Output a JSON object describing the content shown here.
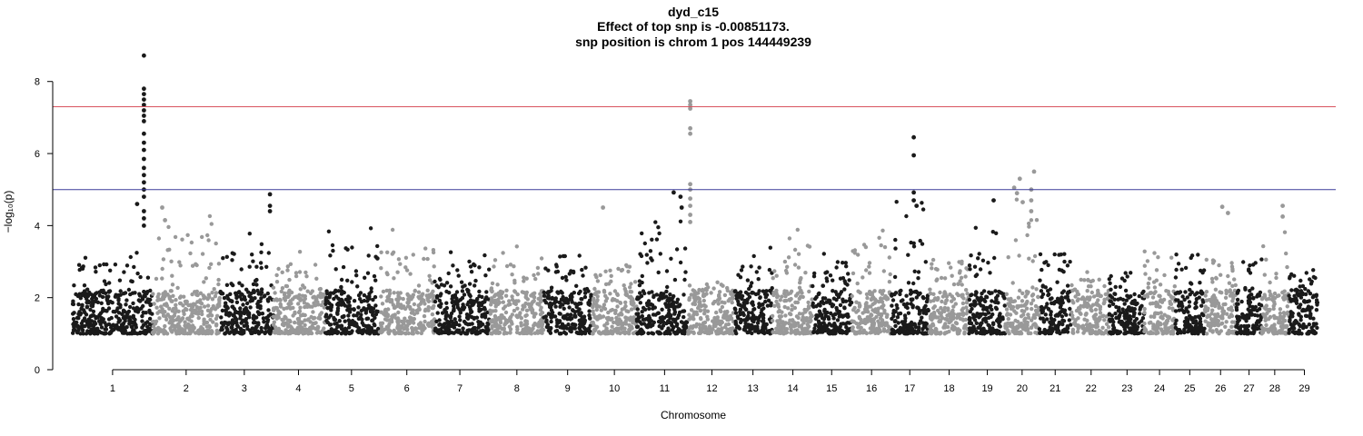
{
  "chart_data": {
    "type": "scatter",
    "title_lines": [
      "dyd_c15",
      "Effect of top snp is -0.00851173.",
      "snp position is chrom 1 pos 144449239"
    ],
    "xlabel": "Chromosome",
    "ylabel": "−log₁₀(p)",
    "ylim": [
      0,
      8.8
    ],
    "yticks": [
      0,
      2,
      4,
      6,
      8
    ],
    "categories": [
      "1",
      "2",
      "3",
      "4",
      "5",
      "6",
      "7",
      "8",
      "9",
      "10",
      "11",
      "12",
      "13",
      "14",
      "15",
      "16",
      "17",
      "18",
      "19",
      "20",
      "21",
      "22",
      "23",
      "24",
      "25",
      "26",
      "27",
      "28",
      "29"
    ],
    "category_positions": [
      0,
      1.29,
      2.31,
      3.26,
      4.19,
      5.16,
      6.09,
      7.09,
      7.98,
      8.8,
      9.68,
      10.51,
      11.23,
      11.93,
      12.61,
      13.31,
      13.98,
      14.67,
      15.34,
      15.95,
      16.53,
      17.16,
      17.79,
      18.36,
      18.89,
      19.43,
      19.93,
      20.38,
      20.9
    ],
    "chromosome_ranges": [
      [
        -0.7,
        0.7
      ],
      [
        0.7,
        1.88
      ],
      [
        1.88,
        2.82
      ],
      [
        2.82,
        3.73
      ],
      [
        3.73,
        4.67
      ],
      [
        4.67,
        5.65
      ],
      [
        5.65,
        6.61
      ],
      [
        6.61,
        7.56
      ],
      [
        7.56,
        8.4
      ],
      [
        8.4,
        9.19
      ],
      [
        9.19,
        10.08
      ],
      [
        10.08,
        10.9
      ],
      [
        10.9,
        11.57
      ],
      [
        11.57,
        12.27
      ],
      [
        12.27,
        12.96
      ],
      [
        12.96,
        13.66
      ],
      [
        13.66,
        14.31
      ],
      [
        14.31,
        15.02
      ],
      [
        15.02,
        15.65
      ],
      [
        15.65,
        16.25
      ],
      [
        16.25,
        16.81
      ],
      [
        16.81,
        17.47
      ],
      [
        17.47,
        18.09
      ],
      [
        18.09,
        18.63
      ],
      [
        18.63,
        19.15
      ],
      [
        19.15,
        19.7
      ],
      [
        19.7,
        20.15
      ],
      [
        20.15,
        20.63
      ],
      [
        20.63,
        21.14
      ]
    ],
    "xlim": [
      -1.05,
      21.45
    ],
    "series_colors": [
      "#1a1a1a",
      "#999999"
    ],
    "base_range": [
      1.0,
      2.2
    ],
    "thresholds": [
      {
        "value": 7.3,
        "color": "#d9535f"
      },
      {
        "value": 5.0,
        "color": "#3b3b9a"
      }
    ],
    "chromosome_peaks": [
      3.3,
      4.5,
      3.8,
      3.4,
      4.0,
      4.0,
      3.3,
      3.5,
      3.3,
      3.3,
      4.9,
      2.6,
      3.8,
      4.0,
      3.4,
      4.1,
      4.9,
      3.5,
      4.7,
      5.5,
      3.8,
      2.9,
      3.0,
      3.6,
      3.7,
      3.5,
      3.5,
      4.5,
      3.2
    ],
    "highlight_points": [
      {
        "x": 0.55,
        "y": 8.72
      },
      {
        "x": 0.55,
        "y": 7.8
      },
      {
        "x": 0.55,
        "y": 7.65
      },
      {
        "x": 0.55,
        "y": 7.5
      },
      {
        "x": 0.55,
        "y": 7.35
      },
      {
        "x": 0.55,
        "y": 7.2
      },
      {
        "x": 0.55,
        "y": 7.05
      },
      {
        "x": 0.55,
        "y": 6.9
      },
      {
        "x": 0.55,
        "y": 6.55
      },
      {
        "x": 0.55,
        "y": 6.3
      },
      {
        "x": 0.55,
        "y": 6.1
      },
      {
        "x": 0.55,
        "y": 5.85
      },
      {
        "x": 0.55,
        "y": 5.6
      },
      {
        "x": 0.55,
        "y": 5.4
      },
      {
        "x": 0.55,
        "y": 5.2
      },
      {
        "x": 0.55,
        "y": 5.0
      },
      {
        "x": 0.55,
        "y": 4.8
      },
      {
        "x": 0.43,
        "y": 4.6
      },
      {
        "x": 0.55,
        "y": 4.4
      },
      {
        "x": 0.55,
        "y": 4.2
      },
      {
        "x": 0.55,
        "y": 4.0
      },
      {
        "x": 0.87,
        "y": 4.5
      },
      {
        "x": 0.92,
        "y": 4.15
      },
      {
        "x": 2.76,
        "y": 4.87
      },
      {
        "x": 2.76,
        "y": 4.55
      },
      {
        "x": 2.76,
        "y": 4.4
      },
      {
        "x": 8.6,
        "y": 4.5
      },
      {
        "x": 9.84,
        "y": 4.92
      },
      {
        "x": 9.96,
        "y": 4.8
      },
      {
        "x": 9.98,
        "y": 4.5
      },
      {
        "x": 10.13,
        "y": 7.45
      },
      {
        "x": 10.13,
        "y": 7.35
      },
      {
        "x": 10.13,
        "y": 7.25
      },
      {
        "x": 10.13,
        "y": 6.7
      },
      {
        "x": 10.13,
        "y": 6.55
      },
      {
        "x": 10.13,
        "y": 5.15
      },
      {
        "x": 10.13,
        "y": 5.0
      },
      {
        "x": 10.13,
        "y": 4.75
      },
      {
        "x": 10.13,
        "y": 4.55
      },
      {
        "x": 10.13,
        "y": 4.3
      },
      {
        "x": 10.13,
        "y": 4.1
      },
      {
        "x": 14.05,
        "y": 6.45
      },
      {
        "x": 14.05,
        "y": 5.95
      },
      {
        "x": 14.05,
        "y": 4.92
      },
      {
        "x": 14.05,
        "y": 4.7
      },
      {
        "x": 14.1,
        "y": 4.55
      },
      {
        "x": 15.45,
        "y": 4.7
      },
      {
        "x": 15.81,
        "y": 5.05
      },
      {
        "x": 15.91,
        "y": 5.3
      },
      {
        "x": 15.86,
        "y": 4.9
      },
      {
        "x": 15.96,
        "y": 4.65
      },
      {
        "x": 16.16,
        "y": 5.5
      },
      {
        "x": 16.11,
        "y": 5.0
      },
      {
        "x": 16.11,
        "y": 4.7
      },
      {
        "x": 16.11,
        "y": 4.4
      },
      {
        "x": 19.46,
        "y": 4.52
      },
      {
        "x": 19.56,
        "y": 4.35
      },
      {
        "x": 20.52,
        "y": 4.55
      },
      {
        "x": 20.52,
        "y": 4.25
      }
    ]
  }
}
